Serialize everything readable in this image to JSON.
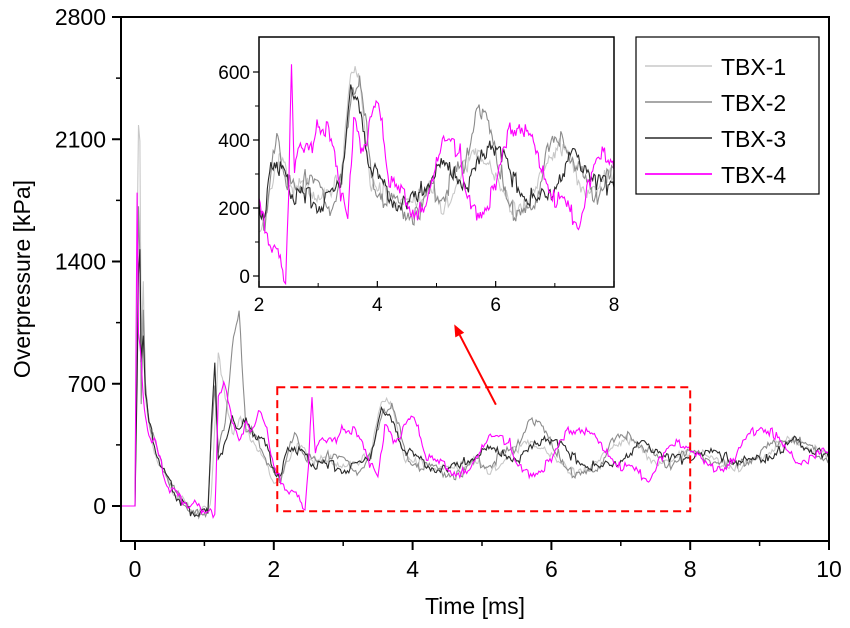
{
  "chart_data": {
    "type": "line",
    "title": "",
    "xlabel": "Time [ms]",
    "ylabel": "Overpressure [kPa]",
    "xlim": [
      -0.2,
      10
    ],
    "ylim": [
      -250,
      2800
    ],
    "xticks": [
      0,
      2,
      4,
      6,
      8,
      10
    ],
    "xtick_labels": [
      "0",
      "2",
      "4",
      "6",
      "8",
      "10"
    ],
    "yticks": [
      0,
      700,
      1400,
      2100,
      2800
    ],
    "ytick_labels": [
      "0",
      "700",
      "1400",
      "2100",
      "2800"
    ],
    "grid": false,
    "legend_position": "top-right",
    "legend": [
      "TBX-1",
      "TBX-2",
      "TBX-3",
      "TBX-4"
    ],
    "series": [
      {
        "name": "TBX-1",
        "color": "#c8c8c8",
        "x": [
          -0.2,
          0.0,
          0.03,
          0.05,
          0.07,
          0.09,
          0.12,
          0.15,
          0.2,
          0.3,
          0.4,
          0.5,
          0.6,
          0.7,
          0.8,
          0.9,
          1.0,
          1.05,
          1.1,
          1.15,
          1.2,
          1.3,
          1.4,
          1.5,
          1.6,
          1.7,
          1.8,
          1.9,
          2.0,
          2.1,
          2.2,
          2.3,
          2.4,
          2.5,
          2.6,
          2.8,
          3.0,
          3.2,
          3.4,
          3.55,
          3.7,
          3.8,
          3.9,
          4.1,
          4.3,
          4.5,
          4.7,
          4.9,
          5.1,
          5.3,
          5.5,
          5.7,
          5.9,
          6.1,
          6.3,
          6.5,
          6.7,
          6.9,
          7.1,
          7.3,
          7.5,
          7.7,
          7.9,
          8.1,
          8.3,
          8.5,
          8.7,
          8.9,
          9.1,
          9.3,
          9.5,
          9.7,
          9.9,
          10.0
        ],
        "y": [
          0,
          0,
          1500,
          2200,
          2100,
          900,
          1300,
          600,
          450,
          300,
          200,
          120,
          60,
          20,
          -20,
          -40,
          -30,
          -10,
          50,
          450,
          900,
          600,
          420,
          500,
          420,
          380,
          300,
          220,
          150,
          130,
          260,
          350,
          320,
          290,
          250,
          270,
          240,
          220,
          320,
          620,
          560,
          420,
          260,
          240,
          220,
          200,
          230,
          280,
          170,
          260,
          330,
          350,
          340,
          240,
          200,
          220,
          250,
          360,
          390,
          310,
          260,
          240,
          300,
          320,
          260,
          240,
          220,
          250,
          300,
          360,
          380,
          340,
          300,
          260
        ]
      },
      {
        "name": "TBX-2",
        "color": "#8c8c8c",
        "x": [
          -0.2,
          0.0,
          0.03,
          0.05,
          0.07,
          0.09,
          0.12,
          0.15,
          0.2,
          0.3,
          0.4,
          0.5,
          0.6,
          0.7,
          0.8,
          0.9,
          1.0,
          1.05,
          1.1,
          1.15,
          1.2,
          1.3,
          1.4,
          1.5,
          1.6,
          1.7,
          1.8,
          1.9,
          2.0,
          2.1,
          2.2,
          2.3,
          2.4,
          2.5,
          2.6,
          2.8,
          3.0,
          3.2,
          3.4,
          3.55,
          3.7,
          3.8,
          3.9,
          4.1,
          4.3,
          4.5,
          4.7,
          4.9,
          5.1,
          5.3,
          5.5,
          5.7,
          5.9,
          6.1,
          6.3,
          6.5,
          6.7,
          6.9,
          7.1,
          7.3,
          7.5,
          7.7,
          7.9,
          8.1,
          8.3,
          8.5,
          8.7,
          8.9,
          9.1,
          9.3,
          9.5,
          9.7,
          9.9,
          10.0
        ],
        "y": [
          0,
          0,
          900,
          1700,
          1400,
          600,
          1100,
          700,
          500,
          330,
          220,
          140,
          70,
          20,
          -40,
          -50,
          -40,
          -20,
          400,
          700,
          300,
          500,
          900,
          1100,
          450,
          420,
          350,
          260,
          180,
          150,
          300,
          400,
          330,
          270,
          260,
          290,
          250,
          200,
          280,
          500,
          600,
          460,
          280,
          230,
          210,
          190,
          170,
          260,
          230,
          300,
          330,
          520,
          420,
          300,
          190,
          170,
          240,
          380,
          400,
          350,
          280,
          230,
          310,
          300,
          260,
          240,
          230,
          280,
          330,
          370,
          390,
          330,
          290,
          270
        ]
      },
      {
        "name": "TBX-3",
        "color": "#2a2a2a",
        "x": [
          -0.2,
          0.0,
          0.03,
          0.05,
          0.07,
          0.09,
          0.12,
          0.15,
          0.2,
          0.3,
          0.4,
          0.5,
          0.6,
          0.7,
          0.8,
          0.9,
          1.0,
          1.05,
          1.1,
          1.15,
          1.2,
          1.3,
          1.4,
          1.5,
          1.6,
          1.7,
          1.8,
          1.9,
          2.0,
          2.1,
          2.2,
          2.3,
          2.4,
          2.5,
          2.6,
          2.8,
          3.0,
          3.2,
          3.4,
          3.55,
          3.7,
          3.8,
          3.9,
          4.1,
          4.3,
          4.5,
          4.7,
          4.9,
          5.1,
          5.3,
          5.5,
          5.7,
          5.9,
          6.1,
          6.3,
          6.5,
          6.7,
          6.9,
          7.1,
          7.3,
          7.5,
          7.7,
          7.9,
          8.1,
          8.3,
          8.5,
          8.7,
          8.9,
          9.1,
          9.3,
          9.5,
          9.7,
          9.9,
          10.0
        ],
        "y": [
          0,
          0,
          700,
          1300,
          1500,
          800,
          1000,
          650,
          480,
          320,
          210,
          130,
          60,
          10,
          -30,
          -40,
          -40,
          -30,
          450,
          800,
          280,
          350,
          500,
          450,
          480,
          420,
          400,
          330,
          220,
          160,
          330,
          340,
          300,
          270,
          230,
          240,
          210,
          230,
          280,
          570,
          480,
          380,
          320,
          260,
          220,
          200,
          240,
          290,
          320,
          300,
          260,
          320,
          400,
          360,
          280,
          240,
          220,
          240,
          300,
          360,
          330,
          280,
          260,
          310,
          300,
          280,
          260,
          260,
          280,
          320,
          370,
          340,
          300,
          270
        ]
      },
      {
        "name": "TBX-4",
        "color": "#ff00ff",
        "x": [
          -0.2,
          0.0,
          0.03,
          0.05,
          0.07,
          0.09,
          0.12,
          0.15,
          0.2,
          0.3,
          0.4,
          0.5,
          0.6,
          0.7,
          0.8,
          0.9,
          1.0,
          1.05,
          1.1,
          1.15,
          1.2,
          1.3,
          1.4,
          1.5,
          1.6,
          1.7,
          1.8,
          1.9,
          2.0,
          2.1,
          2.2,
          2.3,
          2.4,
          2.45,
          2.5,
          2.55,
          2.6,
          2.7,
          2.8,
          2.9,
          3.0,
          3.2,
          3.4,
          3.5,
          3.6,
          3.7,
          3.8,
          4.0,
          4.1,
          4.2,
          4.4,
          4.6,
          4.8,
          4.9,
          5.0,
          5.2,
          5.4,
          5.5,
          5.6,
          5.8,
          6.0,
          6.2,
          6.4,
          6.6,
          6.8,
          7.0,
          7.2,
          7.4,
          7.6,
          7.8,
          8.0,
          8.2,
          8.4,
          8.6,
          8.8,
          9.0,
          9.2,
          9.4,
          9.6,
          9.8,
          10.0
        ],
        "y": [
          0,
          0,
          1800,
          1000,
          900,
          850,
          600,
          500,
          420,
          350,
          200,
          100,
          60,
          30,
          10,
          0,
          -20,
          -40,
          -40,
          -40,
          600,
          700,
          500,
          350,
          500,
          420,
          540,
          450,
          200,
          150,
          100,
          60,
          20,
          0,
          220,
          640,
          300,
          380,
          400,
          360,
          450,
          420,
          220,
          190,
          460,
          380,
          400,
          500,
          420,
          280,
          240,
          200,
          180,
          250,
          360,
          400,
          360,
          260,
          180,
          200,
          260,
          420,
          450,
          400,
          300,
          230,
          200,
          160,
          280,
          360,
          340,
          240,
          200,
          260,
          380,
          460,
          420,
          300,
          260,
          280,
          320
        ]
      }
    ],
    "annotations": {
      "zoom_box": {
        "x_range": [
          2.05,
          8.0
        ],
        "y_range": [
          -30,
          680
        ],
        "color": "#ff0000",
        "style": "dashed"
      },
      "arrow": {
        "color": "#ff0000",
        "from": [
          5.2,
          580
        ],
        "to": [
          4.6,
          1040
        ]
      }
    },
    "inset": {
      "xlim": [
        2,
        8
      ],
      "ylim": [
        -30,
        690
      ],
      "xticks": [
        2,
        4,
        6,
        8
      ],
      "xtick_labels": [
        "2",
        "4",
        "6",
        "8"
      ],
      "yticks": [
        0,
        200,
        400,
        600
      ],
      "ytick_labels": [
        "0",
        "200",
        "400",
        "600"
      ]
    }
  }
}
